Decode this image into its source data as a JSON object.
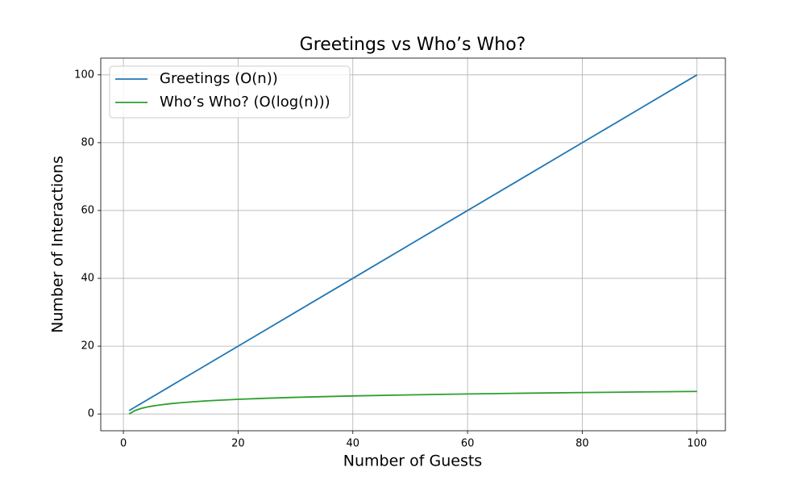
{
  "chart_data": {
    "type": "line",
    "title": "Greetings vs Who’s Who?",
    "x_label": "Number of Guests",
    "y_label": "Number of Interactions",
    "x": [
      1,
      2,
      3,
      4,
      5,
      6,
      8,
      10,
      12,
      15,
      20,
      25,
      30,
      40,
      50,
      60,
      70,
      80,
      90,
      100
    ],
    "series": [
      {
        "name": "Greetings (O(n))",
        "color": "#1f77b4",
        "values": [
          1,
          2,
          3,
          4,
          5,
          6,
          8,
          10,
          12,
          15,
          20,
          25,
          30,
          40,
          50,
          60,
          70,
          80,
          90,
          100
        ]
      },
      {
        "name": "Who’s Who? (O(log(n)))",
        "color": "#2ca02c",
        "values": [
          0,
          1,
          1.58,
          2,
          2.32,
          2.58,
          3,
          3.32,
          3.58,
          3.91,
          4.32,
          4.64,
          4.91,
          5.32,
          5.64,
          5.91,
          6.13,
          6.32,
          6.49,
          6.64
        ]
      }
    ],
    "xlim": [
      -3.95,
      104.95
    ],
    "xticks": [
      0,
      20,
      40,
      60,
      80,
      100
    ],
    "ylim": [
      -4.95,
      104.95
    ],
    "yticks": [
      0,
      20,
      40,
      60,
      80,
      100
    ],
    "grid": true,
    "legend": "upper-left"
  }
}
